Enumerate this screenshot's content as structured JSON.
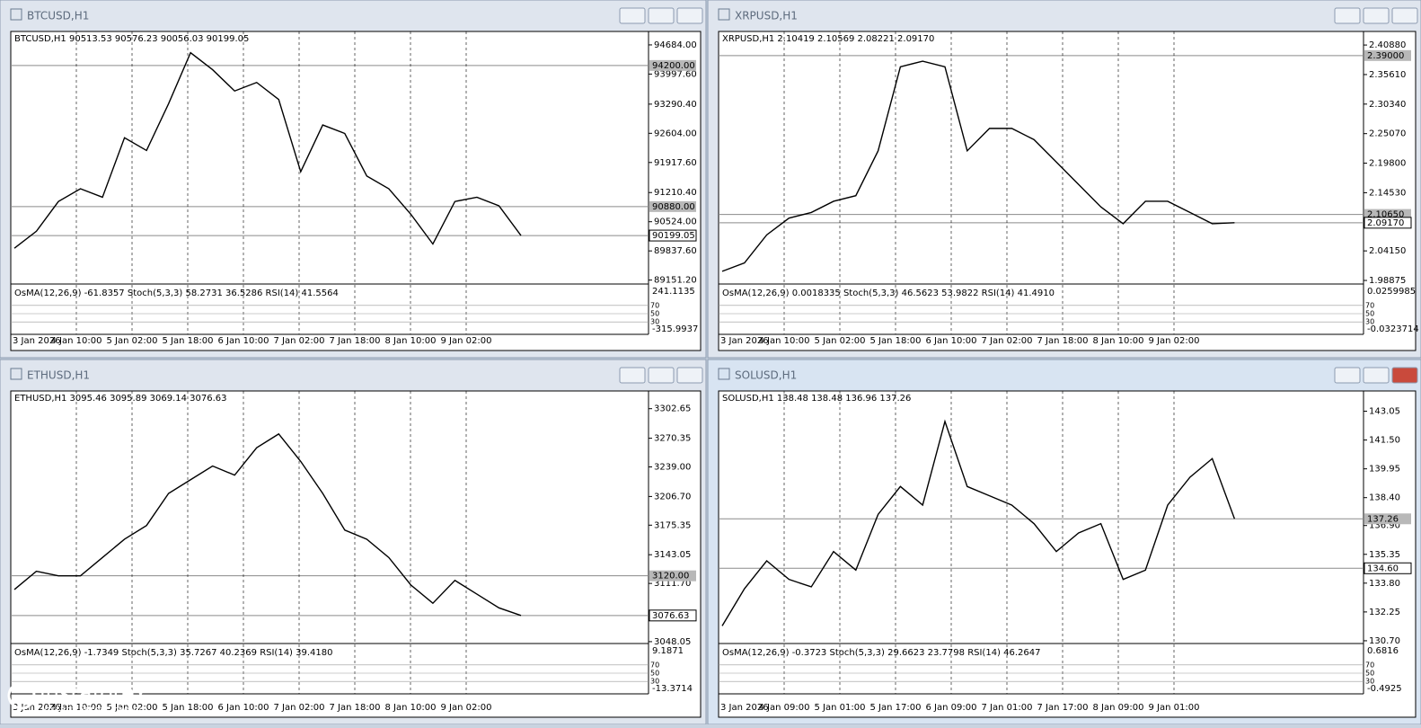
{
  "chart_data": [
    {
      "type": "line",
      "title": "BTCUSD,H1",
      "header": "BTCUSD,H1  90513.53 90576.23 90056.03 90199.05",
      "color": "#000000",
      "ylim": [
        89080,
        95000
      ],
      "yticks": [
        {
          "value": 94684,
          "label": "94684.00"
        },
        {
          "value": 93997.6,
          "label": "93997.60"
        },
        {
          "value": 93290.4,
          "label": "93290.40"
        },
        {
          "value": 92604,
          "label": "92604.00"
        },
        {
          "value": 91917.6,
          "label": "91917.60"
        },
        {
          "value": 91210.4,
          "label": "91210.40"
        },
        {
          "value": 90524,
          "label": "90524.00"
        },
        {
          "value": 89837.6,
          "label": "89837.60"
        },
        {
          "value": 89151.2,
          "label": "89151.20"
        }
      ],
      "price_labels": [
        {
          "value": 94200,
          "label": "94200.00"
        },
        {
          "value": 90880,
          "label": "90880.00"
        },
        {
          "value": 90199.05,
          "label": "90199.05"
        }
      ],
      "values": [
        89900,
        90300,
        91000,
        91300,
        91100,
        92500,
        92200,
        93300,
        94500,
        94100,
        93600,
        93800,
        93400,
        91700,
        92800,
        92600,
        91600,
        91300,
        90700,
        90000,
        91000,
        91100,
        90900,
        90199.05
      ],
      "x_labels": [
        "3 Jan 2026",
        "4 Jan 10:00",
        "5 Jan 02:00",
        "5 Jan 18:00",
        "6 Jan 10:00",
        "7 Jan 02:00",
        "7 Jan 18:00",
        "8 Jan 10:00",
        "9 Jan 02:00"
      ],
      "indicator_header": "OsMA(12,26,9) -61.8357  Stoch(5,3,3) 58.2731 36.5286  RSI(14) 41.5564",
      "indicator_ticks": [
        241.1135,
        -315.9937
      ],
      "levels": [
        70,
        50,
        30
      ]
    },
    {
      "type": "line",
      "title": "XRPUSD,H1",
      "header": "XRPUSD,H1  2.10419 2.10569 2.08221 2.09170",
      "color": "#000000",
      "ylim": [
        1.984,
        2.433
      ],
      "yticks": [
        {
          "value": 2.4088,
          "label": "2.40880"
        },
        {
          "value": 2.3561,
          "label": "2.35610"
        },
        {
          "value": 2.3034,
          "label": "2.30340"
        },
        {
          "value": 2.2507,
          "label": "2.25070"
        },
        {
          "value": 2.198,
          "label": "2.19800"
        },
        {
          "value": 2.1453,
          "label": "2.14530"
        },
        {
          "value": 2.0415,
          "label": "2.04150"
        },
        {
          "value": 1.98875,
          "label": "1.98875"
        }
      ],
      "price_labels": [
        {
          "value": 2.39,
          "label": "2.39000"
        },
        {
          "value": 2.1065,
          "label": "2.10650"
        },
        {
          "value": 2.0917,
          "label": "2.09170"
        }
      ],
      "values": [
        2.005,
        2.02,
        2.07,
        2.1,
        2.11,
        2.13,
        2.14,
        2.22,
        2.37,
        2.38,
        2.37,
        2.22,
        2.26,
        2.26,
        2.24,
        2.2,
        2.16,
        2.12,
        2.09,
        2.13,
        2.13,
        2.11,
        2.09,
        2.0917
      ],
      "x_labels": [
        "3 Jan 2026",
        "4 Jan 10:00",
        "5 Jan 02:00",
        "5 Jan 18:00",
        "6 Jan 10:00",
        "7 Jan 02:00",
        "7 Jan 18:00",
        "8 Jan 10:00",
        "9 Jan 02:00"
      ],
      "indicator_header": "OsMA(12,26,9) 0.0018335  Stoch(5,3,3) 46.5623 53.9822  RSI(14) 41.4910",
      "indicator_ticks": [
        0.0259985,
        -0.0323714
      ],
      "levels": [
        70,
        50,
        30
      ]
    },
    {
      "type": "line",
      "title": "ETHUSD,H1",
      "header": "ETHUSD,H1  3095.46 3095.89 3069.14 3076.63",
      "color": "#000000",
      "ylim": [
        3047,
        3322
      ],
      "yticks": [
        {
          "value": 3302.65,
          "label": "3302.65"
        },
        {
          "value": 3270.35,
          "label": "3270.35"
        },
        {
          "value": 3239,
          "label": "3239.00"
        },
        {
          "value": 3206.7,
          "label": "3206.70"
        },
        {
          "value": 3175.35,
          "label": "3175.35"
        },
        {
          "value": 3143.05,
          "label": "3143.05"
        },
        {
          "value": 3111.7,
          "label": "3111.70"
        },
        {
          "value": 3048.05,
          "label": "3048.05"
        }
      ],
      "price_labels": [
        {
          "value": 3120,
          "label": "3120.00"
        },
        {
          "value": 3076.63,
          "label": "3076.63"
        }
      ],
      "values": [
        3105,
        3125,
        3120,
        3120,
        3140,
        3160,
        3175,
        3210,
        3225,
        3240,
        3230,
        3260,
        3275,
        3245,
        3210,
        3170,
        3160,
        3140,
        3110,
        3090,
        3115,
        3100,
        3085,
        3076.63
      ],
      "x_labels": [
        "3 Jan 2026",
        "4 Jan 10:00",
        "5 Jan 02:00",
        "5 Jan 18:00",
        "6 Jan 10:00",
        "7 Jan 02:00",
        "7 Jan 18:00",
        "8 Jan 10:00",
        "9 Jan 02:00"
      ],
      "indicator_header": "OsMA(12,26,9) -1.7349  Stoch(5,3,3) 35.7267 40.2369  RSI(14) 39.4180",
      "indicator_ticks": [
        9.1871,
        -13.3714
      ],
      "levels": [
        70,
        50,
        30
      ]
    },
    {
      "type": "line",
      "title": "SOLUSD,H1",
      "header": "SOLUSD,H1  138.48 138.48 136.96 137.26",
      "color": "#000000",
      "ylim": [
        130.6,
        144.14
      ],
      "yticks": [
        {
          "value": 143.05,
          "label": "143.05"
        },
        {
          "value": 141.5,
          "label": "141.50"
        },
        {
          "value": 139.95,
          "label": "139.95"
        },
        {
          "value": 138.4,
          "label": "138.40"
        },
        {
          "value": 136.9,
          "label": "136.90"
        },
        {
          "value": 135.35,
          "label": "135.35"
        },
        {
          "value": 133.8,
          "label": "133.80"
        },
        {
          "value": 132.25,
          "label": "132.25"
        },
        {
          "value": 130.7,
          "label": "130.70"
        }
      ],
      "price_labels": [
        {
          "value": 137.26,
          "label": "137.26"
        },
        {
          "value": 134.6,
          "label": "134.60"
        }
      ],
      "values": [
        131.5,
        133.5,
        135,
        134,
        133.6,
        135.5,
        134.5,
        137.5,
        139,
        138,
        142.5,
        139,
        138.5,
        138,
        137,
        135.5,
        136.5,
        137,
        134,
        134.5,
        138,
        139.5,
        140.5,
        137.26
      ],
      "x_labels": [
        "3 Jan 2026",
        "4 Jan 09:00",
        "5 Jan 01:00",
        "5 Jan 17:00",
        "6 Jan 09:00",
        "7 Jan 01:00",
        "7 Jan 17:00",
        "8 Jan 09:00",
        "9 Jan 01:00"
      ],
      "indicator_header": "OsMA(12,26,9) -0.3723  Stoch(5,3,3) 29.6623 23.7798  RSI(14) 46.2647",
      "indicator_ticks": [
        0.6816,
        -0.4925
      ],
      "levels": [
        70,
        50,
        30
      ]
    }
  ],
  "watermark": {
    "brand": "instaforex",
    "slogan": "Instant Forex Trading"
  }
}
